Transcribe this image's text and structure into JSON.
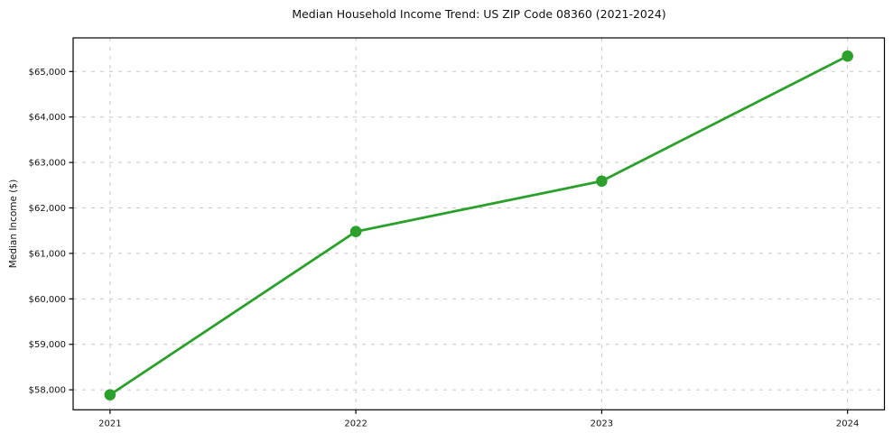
{
  "chart_data": {
    "type": "line",
    "title": "Median Household Income Trend: US ZIP Code 08360 (2021-2024)",
    "xlabel": "",
    "ylabel": "Median Income ($)",
    "x": [
      2021,
      2022,
      2023,
      2024
    ],
    "x_tick_labels": [
      "2021",
      "2022",
      "2023",
      "2024"
    ],
    "y_ticks": [
      58000,
      59000,
      60000,
      61000,
      62000,
      63000,
      64000,
      65000
    ],
    "y_tick_labels": [
      "$58,000",
      "$59,000",
      "$60,000",
      "$61,000",
      "$62,000",
      "$63,000",
      "$64,000",
      "$65,000"
    ],
    "series": [
      {
        "name": "Median Income",
        "values": [
          57890,
          61480,
          62590,
          65340
        ],
        "color": "#2ca02c",
        "marker": "circle"
      }
    ],
    "xlim": [
      2020.85,
      2024.15
    ],
    "ylim": [
      57560,
      65740
    ],
    "grid": true,
    "grid_style": "dashed",
    "legend": "none",
    "colors": {
      "line": "#2ca02c",
      "grid": "#c8c8c8",
      "axis": "#000000",
      "background": "#ffffff",
      "text": "#111111"
    }
  }
}
